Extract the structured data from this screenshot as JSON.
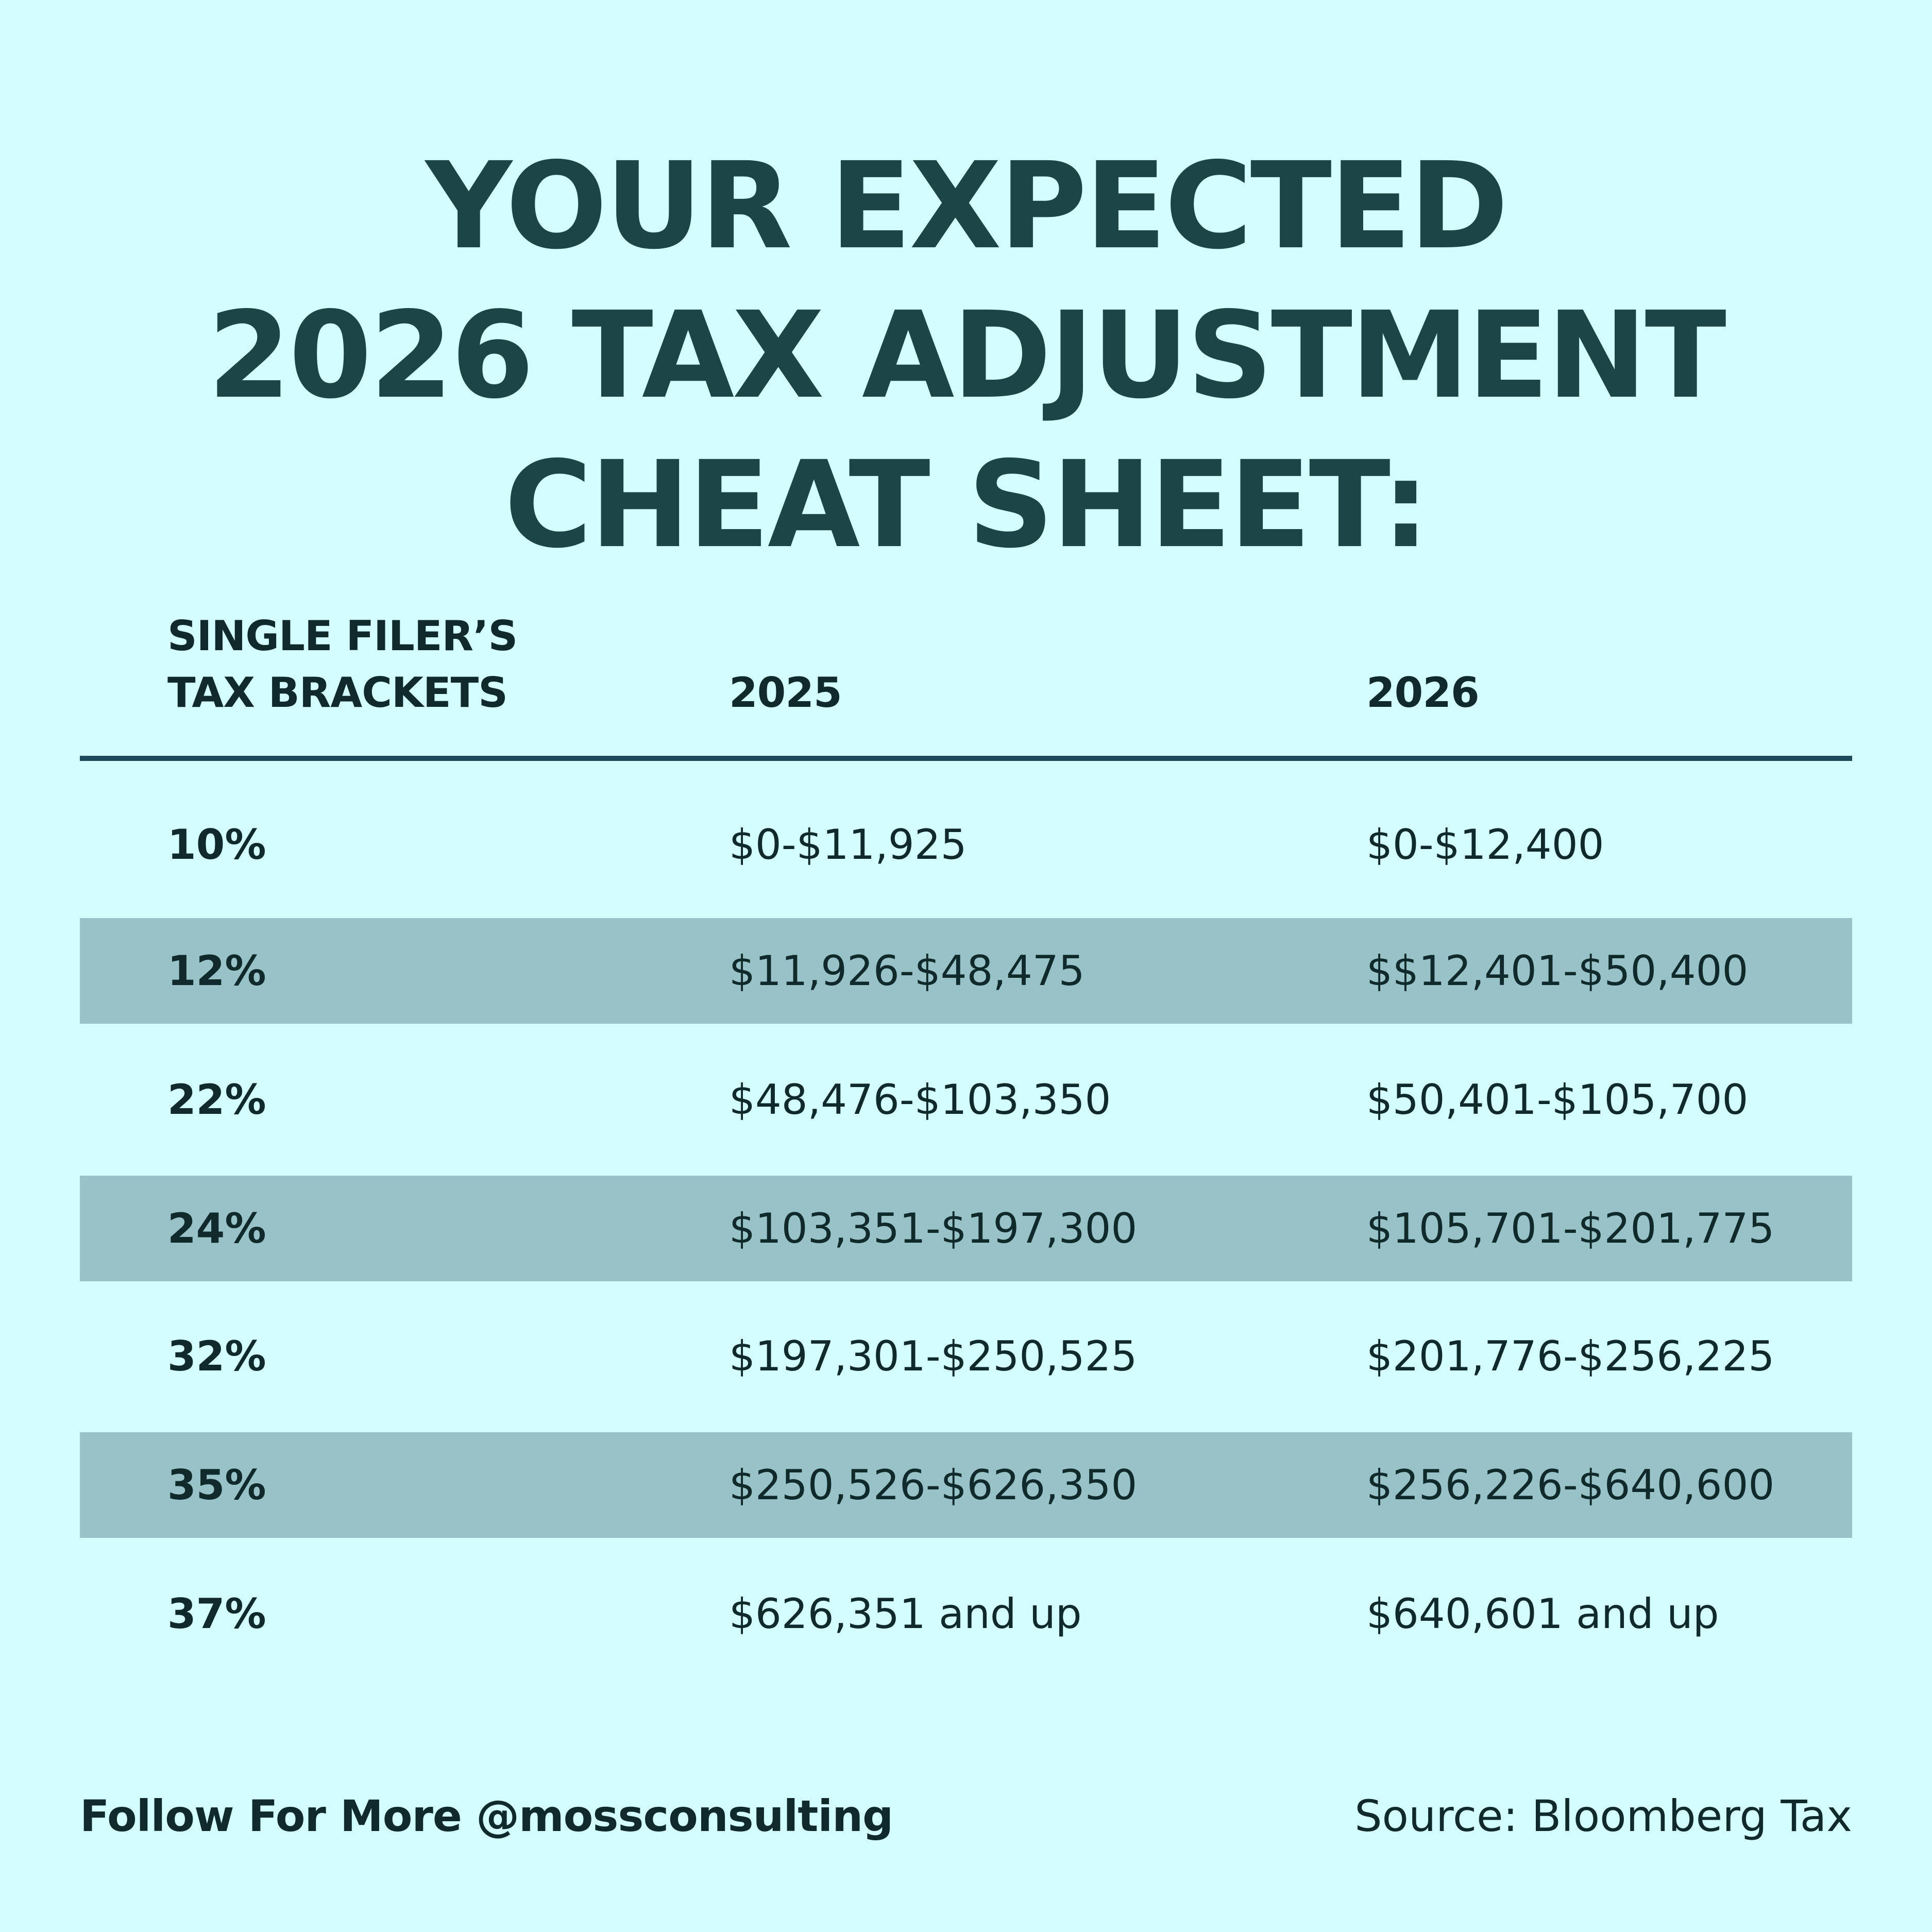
{
  "title": {
    "line1": "YOUR EXPECTED",
    "line2": "2026 TAX ADJUSTMENT",
    "line3": "CHEAT SHEET:"
  },
  "table": {
    "headers": {
      "brackets_line1": "SINGLE FILER’S",
      "brackets_line2": "TAX BRACKETS",
      "col_2025": "2025",
      "col_2026": "2026"
    },
    "rows": [
      {
        "rate": "10%",
        "y2025": "$0-$11,925",
        "y2026": "$0-$12,400"
      },
      {
        "rate": "12%",
        "y2025": "$11,926-$48,475",
        "y2026": "$$12,401-$50,400"
      },
      {
        "rate": "22%",
        "y2025": "$48,476-$103,350",
        "y2026": "$50,401-$105,700"
      },
      {
        "rate": "24%",
        "y2025": "$103,351-$197,300",
        "y2026": "$105,701-$201,775"
      },
      {
        "rate": "32%",
        "y2025": "$197,301-$250,525",
        "y2026": "$201,776-$256,225"
      },
      {
        "rate": "35%",
        "y2025": "$250,526-$626,350",
        "y2026": "$256,226-$640,600"
      },
      {
        "rate": "37%",
        "y2025": "$626,351 and up",
        "y2026": "$640,601 and up"
      }
    ]
  },
  "footer": {
    "follow": "Follow For More @mossconsulting",
    "source": "Source: Bloomberg Tax"
  },
  "colors": {
    "background": "#d4fdff",
    "title": "#1c4547",
    "shaded_row": "#99c1c8",
    "rule": "#1c4a5a",
    "text": "#102a2c"
  }
}
